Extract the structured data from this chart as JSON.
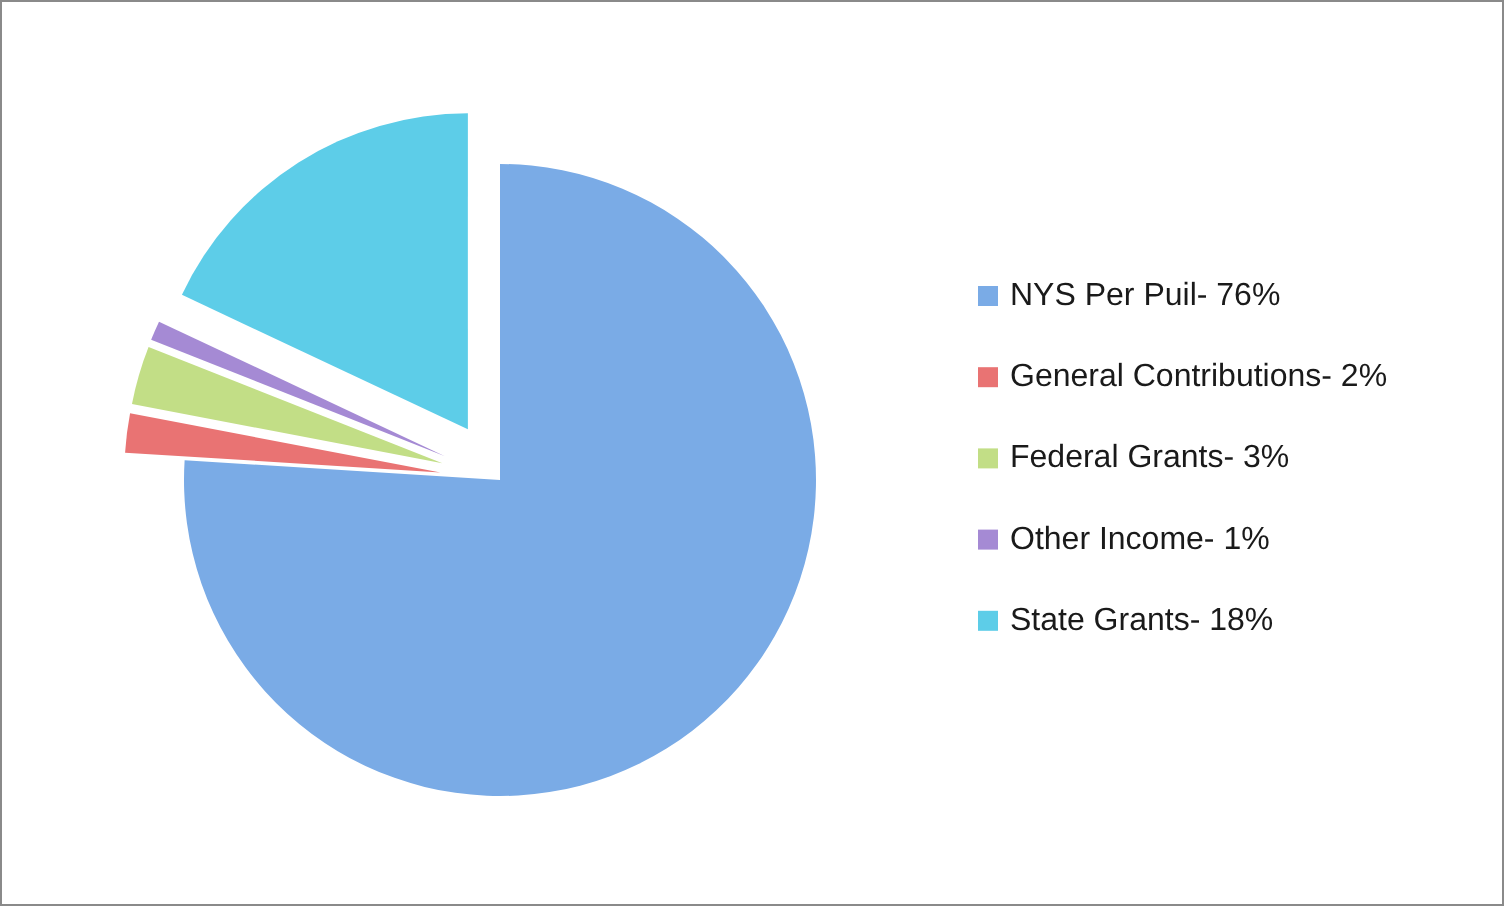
{
  "chart_data": {
    "type": "pie",
    "categories": [
      "NYS Per Puil- 76%",
      "General Contributions- 2%",
      "Federal Grants- 3%",
      "Other Income- 1%",
      "State Grants- 18%"
    ],
    "values": [
      76,
      2,
      3,
      1,
      18
    ],
    "colors": [
      "#7aabe6",
      "#e97373",
      "#c2de86",
      "#a58ad4",
      "#5dcde8"
    ],
    "legend": "right"
  }
}
